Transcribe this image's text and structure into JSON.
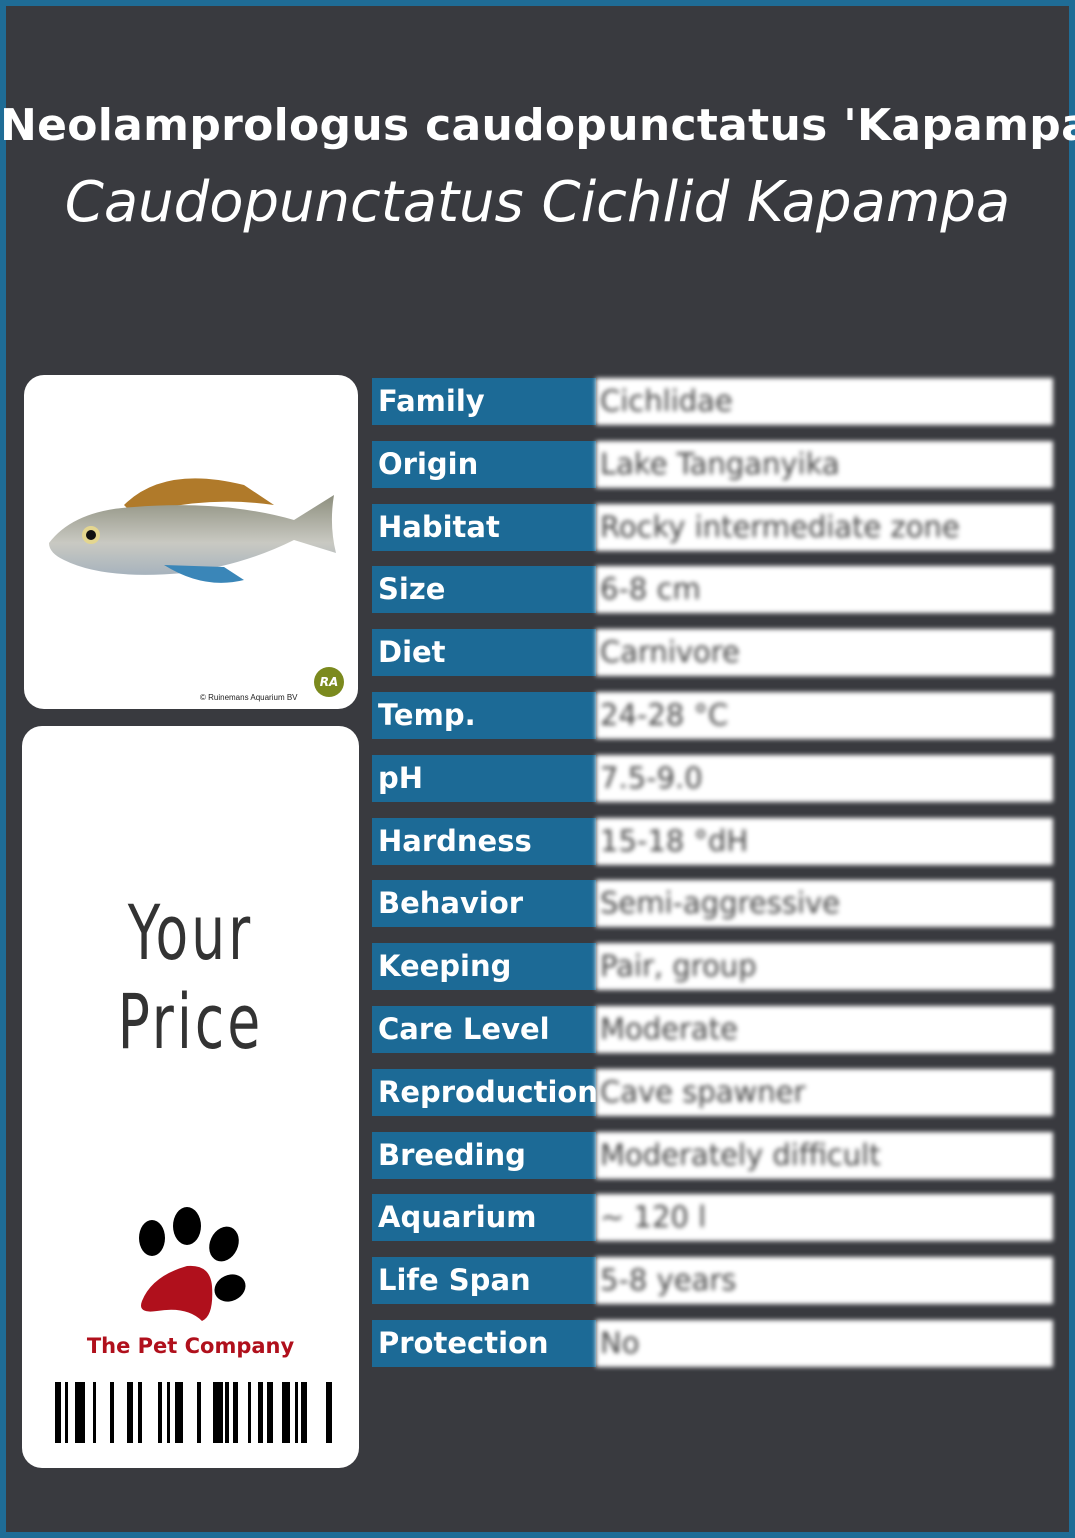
{
  "header": {
    "title": "Neolamprologus caudopunctatus 'Kapampa'",
    "subtitle": "Caudopunctatus Cichlid Kapampa"
  },
  "image_card": {
    "photo_alt": "fish-photo",
    "credit": "© Ruinemans Aquarium BV",
    "logo_text": "RA"
  },
  "price_card": {
    "price_label": "Your Price",
    "brand": "The Pet Company",
    "brand_color": "#b0101c"
  },
  "colors": {
    "frame": "#1f6c96",
    "background": "#393a3f",
    "label_cell": "#1c6a96"
  },
  "specs": [
    {
      "label": "Family",
      "value": "Cichlidae"
    },
    {
      "label": "Origin",
      "value": "Lake Tanganyika"
    },
    {
      "label": "Habitat",
      "value": "Rocky intermediate zone"
    },
    {
      "label": "Size",
      "value": "6-8 cm"
    },
    {
      "label": "Diet",
      "value": "Carnivore"
    },
    {
      "label": "Temp.",
      "value": "24-28 °C"
    },
    {
      "label": "pH",
      "value": "7.5-9.0"
    },
    {
      "label": "Hardness",
      "value": "15-18 °dH"
    },
    {
      "label": "Behavior",
      "value": "Semi-aggressive"
    },
    {
      "label": "Keeping",
      "value": "Pair, group"
    },
    {
      "label": "Care Level",
      "value": "Moderate"
    },
    {
      "label": "Reproduction",
      "value": "Cave spawner"
    },
    {
      "label": "Breeding",
      "value": "Moderately difficult"
    },
    {
      "label": "Aquarium",
      "value": "~ 120 l"
    },
    {
      "label": "Life Span",
      "value": "5-8 years"
    },
    {
      "label": "Protection",
      "value": "No"
    }
  ]
}
